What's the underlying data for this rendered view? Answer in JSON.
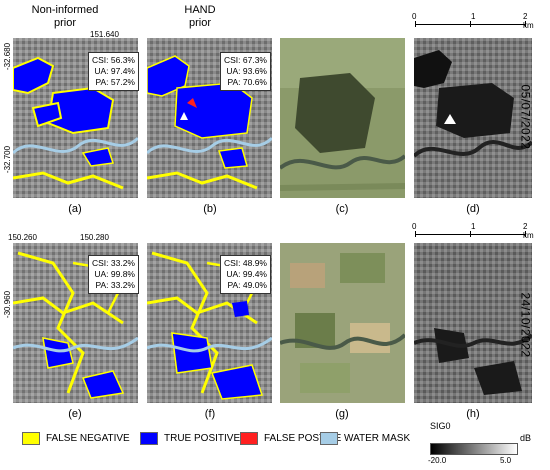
{
  "headers": {
    "col_a": "Non-informed\nprior",
    "col_b": "HAND\nprior"
  },
  "coords": {
    "top_lon": "151.640",
    "top_lat_1": "-32.680",
    "top_lat_2": "-32.700",
    "bot_lon_1": "150.260",
    "bot_lon_2": "150.280",
    "bot_lat": "-30.960"
  },
  "scalebars": {
    "top": [
      "0",
      "1",
      "2 km"
    ],
    "bottom": [
      "0",
      "1",
      "2 km"
    ]
  },
  "dates": {
    "top": "05/07/2022",
    "bottom": "24/10/2022"
  },
  "stats": {
    "a": [
      "CSI: 56.3%",
      "UA: 97.4%",
      "PA: 57.2%"
    ],
    "b": [
      "CSI: 67.3%",
      "UA: 93.6%",
      "PA: 70.6%"
    ],
    "e": [
      "CSI: 33.2%",
      "UA: 99.8%",
      "PA: 33.2%"
    ],
    "f": [
      "CSI: 48.9%",
      "UA: 99.4%",
      "PA: 49.0%"
    ]
  },
  "panel_labels": [
    "(a)",
    "(b)",
    "(c)",
    "(d)",
    "(e)",
    "(f)",
    "(g)",
    "(h)"
  ],
  "legend": {
    "items": [
      {
        "label": "FALSE NEGATIVE",
        "color": "#ffff00"
      },
      {
        "label": "TRUE POSITIVE",
        "color": "#0000ff"
      },
      {
        "label": "FALSE POSTIVE",
        "color": "#ff2020"
      },
      {
        "label": "WATER MASK",
        "color": "#a6cde6"
      }
    ]
  },
  "colorbar": {
    "title": "SIG0",
    "unit": "dB",
    "min": "-20.0",
    "max": "5.0"
  }
}
